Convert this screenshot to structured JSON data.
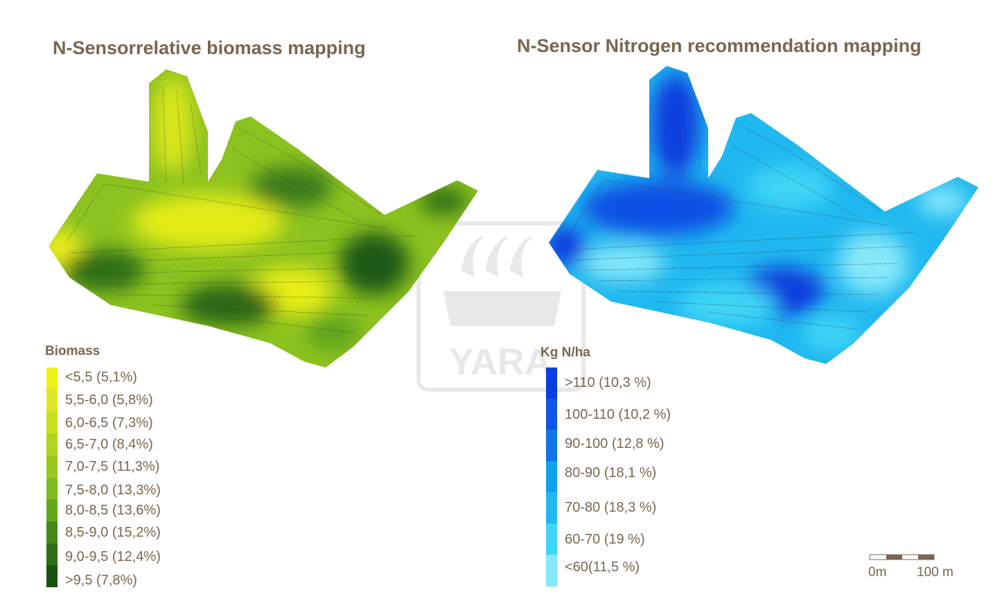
{
  "left_map": {
    "title": "N-Sensorrelative biomass mapping",
    "legend_title": "Biomass",
    "legend": [
      {
        "label": "<5,5 (5,1%)",
        "color": "#eef01a"
      },
      {
        "label": "5,5-6,0  (5,8%)",
        "color": "#dfe827"
      },
      {
        "label": "6,0-6,5  (7,3%)",
        "color": "#c8e01f"
      },
      {
        "label": "6,5-7,0  (8,4%)",
        "color": "#b0d423"
      },
      {
        "label": "7,0-7,5  (11,3%)",
        "color": "#98c822"
      },
      {
        "label": "7,5-8,0  (13,3%)",
        "color": "#7fba22"
      },
      {
        "label": "8,0-8,5  (13,6%)",
        "color": "#62a81c"
      },
      {
        "label": "8,5-9,0  (15,2%)",
        "color": "#468a1c"
      },
      {
        "label": "9,0-9,5  (12,4%)",
        "color": "#2e6e16"
      },
      {
        "label": ">9,5  (7,8%)",
        "color": "#1a5210"
      }
    ]
  },
  "right_map": {
    "title": "N-Sensor Nitrogen recommendation mapping",
    "legend_title": "Kg N/ha",
    "legend": [
      {
        "label": ">110 (10,3 %)",
        "color": "#0a3ee0"
      },
      {
        "label": "100-110 (10,2 %)",
        "color": "#0f55e6"
      },
      {
        "label": "90-100 (12,8 %)",
        "color": "#1274e8"
      },
      {
        "label": "80-90 (18,1 %)",
        "color": "#0ea2ee"
      },
      {
        "label": "70-80 (18,3 %)",
        "color": "#20b8f0"
      },
      {
        "label": "60-70 (19 %)",
        "color": "#3fd6f6"
      },
      {
        "label": "<60(11,5 %)",
        "color": "#86e8fa"
      }
    ]
  },
  "scale_bar": {
    "start_label": "0m",
    "end_label": "100 m"
  },
  "watermark": {
    "text": "YARA"
  }
}
